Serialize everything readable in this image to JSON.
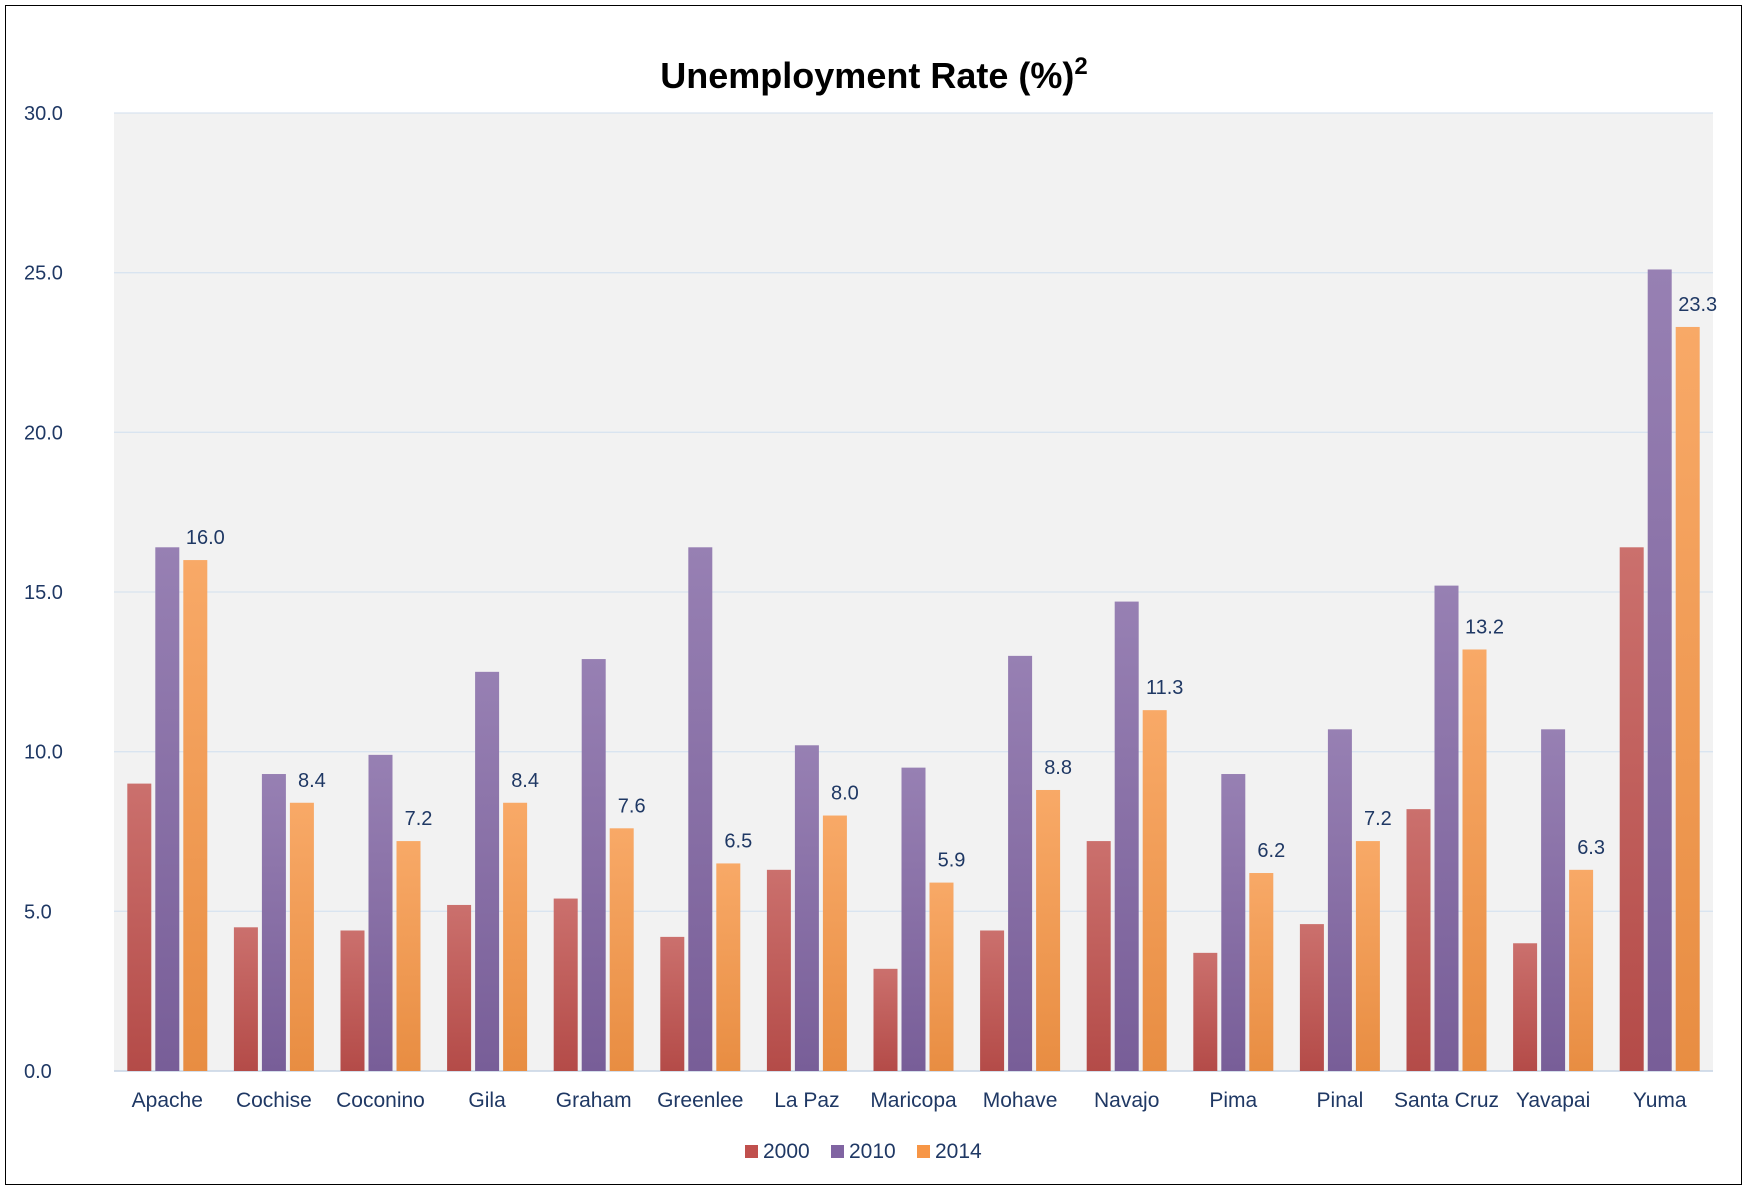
{
  "chart_data": {
    "type": "bar",
    "title": "Unemployment Rate (%)",
    "title_superscript": "2",
    "categories": [
      "Apache",
      "Cochise",
      "Coconino",
      "Gila",
      "Graham",
      "Greenlee",
      "La Paz",
      "Maricopa",
      "Mohave",
      "Navajo",
      "Pima",
      "Pinal",
      "Santa Cruz",
      "Yavapai",
      "Yuma"
    ],
    "series": [
      {
        "name": "2000",
        "color": "#c0504d",
        "values": [
          9.0,
          4.5,
          4.4,
          5.2,
          5.4,
          4.2,
          6.3,
          3.2,
          4.4,
          7.2,
          3.7,
          4.6,
          8.2,
          4.0,
          16.4
        ]
      },
      {
        "name": "2010",
        "color": "#8064a2",
        "values": [
          16.4,
          9.3,
          9.9,
          12.5,
          12.9,
          16.4,
          10.2,
          9.5,
          13.0,
          14.7,
          9.3,
          10.7,
          15.2,
          10.7,
          25.1
        ]
      },
      {
        "name": "2014",
        "color": "#f79646",
        "values": [
          16.0,
          8.4,
          7.2,
          8.4,
          7.6,
          6.5,
          8.0,
          5.9,
          8.8,
          11.3,
          6.2,
          7.2,
          13.2,
          6.3,
          23.3
        ]
      }
    ],
    "data_labels_series": "2014",
    "data_labels": [
      "16.0",
      "8.4",
      "7.2",
      "8.4",
      "7.6",
      "6.5",
      "8.0",
      "5.9",
      "8.8",
      "11.3",
      "6.2",
      "7.2",
      "13.2",
      "6.3",
      "23.3"
    ],
    "y_ticks": [
      "0.0",
      "5.0",
      "10.0",
      "15.0",
      "20.0",
      "25.0",
      "30.0"
    ],
    "ylim": [
      0,
      30
    ],
    "grid": true,
    "legend": "bottom",
    "plot_background": "#f2f2f2",
    "gridline_color": "#d9e4f0",
    "text_color": "#1f3864"
  }
}
